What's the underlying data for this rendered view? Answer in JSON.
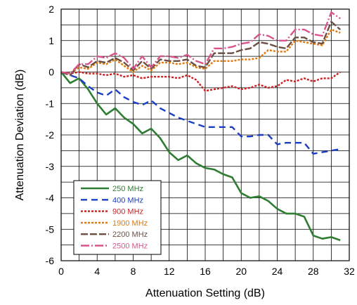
{
  "chart_data": {
    "type": "line",
    "title": "",
    "xlabel": "Attenuation Setting (dB)",
    "ylabel": "Attenuation Deviation (dB)",
    "xlim": [
      0,
      32
    ],
    "ylim": [
      -6,
      2
    ],
    "xticks": [
      0,
      4,
      8,
      12,
      16,
      20,
      24,
      28,
      32
    ],
    "yticks": [
      2,
      1,
      0,
      -1,
      -2,
      -3,
      -4,
      -5,
      -6
    ],
    "grid": true,
    "legend_position": "bottom-left",
    "x": [
      0,
      1,
      2,
      3,
      4,
      5,
      6,
      7,
      8,
      9,
      10,
      11,
      12,
      13,
      14,
      15,
      16,
      17,
      18,
      19,
      20,
      21,
      22,
      23,
      24,
      25,
      26,
      27,
      28,
      29,
      30,
      31
    ],
    "series": [
      {
        "name": "250 MHz",
        "color": "#2e7d32",
        "style": "solid",
        "values": [
          0,
          -0.35,
          -0.2,
          -0.55,
          -1.0,
          -1.35,
          -1.15,
          -1.45,
          -1.65,
          -1.95,
          -1.8,
          -2.1,
          -2.55,
          -2.8,
          -2.65,
          -2.9,
          -3.05,
          -3.1,
          -3.25,
          -3.35,
          -3.85,
          -4.0,
          -3.95,
          -4.1,
          -4.35,
          -4.5,
          -4.5,
          -4.6,
          -5.2,
          -5.3,
          -5.25,
          -5.35
        ]
      },
      {
        "name": "400 MHz",
        "color": "#1a3fc4",
        "style": "dash",
        "values": [
          0,
          -0.1,
          -0.2,
          -0.45,
          -0.65,
          -0.75,
          -0.55,
          -0.8,
          -0.95,
          -1.05,
          -0.9,
          -1.15,
          -1.3,
          -1.45,
          -1.55,
          -1.65,
          -1.75,
          -1.75,
          -1.75,
          -1.75,
          -2.05,
          -2.05,
          -2.0,
          -2.0,
          -2.3,
          -2.25,
          -2.25,
          -2.25,
          -2.6,
          -2.55,
          -2.5,
          -2.45
        ]
      },
      {
        "name": "900 MHz",
        "color": "#cc1f1f",
        "style": "dot",
        "values": [
          0,
          -0.05,
          0.0,
          -0.05,
          -0.05,
          -0.1,
          -0.05,
          -0.15,
          -0.1,
          -0.2,
          -0.15,
          -0.15,
          -0.15,
          -0.2,
          -0.1,
          -0.25,
          -0.6,
          -0.55,
          -0.5,
          -0.45,
          -0.55,
          -0.5,
          -0.4,
          -0.5,
          -0.45,
          -0.25,
          -0.3,
          -0.2,
          -0.3,
          -0.2,
          -0.2,
          0.0
        ]
      },
      {
        "name": "1900 MHz",
        "color": "#e07a10",
        "style": "dot",
        "values": [
          0,
          -0.05,
          0.15,
          0.1,
          0.3,
          0.25,
          0.4,
          0.2,
          0.0,
          0.2,
          0.05,
          0.3,
          0.3,
          0.25,
          0.3,
          0.15,
          0.1,
          0.35,
          0.35,
          0.35,
          0.4,
          0.4,
          0.45,
          0.7,
          0.65,
          0.65,
          1.0,
          0.95,
          0.9,
          0.85,
          1.35,
          1.25
        ]
      },
      {
        "name": "2200 MHz",
        "color": "#6b4f43",
        "style": "longdash",
        "values": [
          0,
          -0.1,
          0.25,
          0.15,
          0.35,
          0.3,
          0.45,
          0.3,
          0.05,
          0.35,
          0.1,
          0.4,
          0.35,
          0.35,
          0.4,
          0.2,
          0.15,
          0.6,
          0.6,
          0.6,
          0.7,
          0.75,
          0.95,
          0.9,
          0.8,
          0.75,
          1.1,
          1.1,
          0.95,
          0.9,
          1.6,
          1.35
        ]
      },
      {
        "name": "2500 MHz",
        "color": "#d9548a",
        "style": "dashdot",
        "values": [
          0,
          -0.05,
          0.25,
          0.25,
          0.5,
          0.45,
          0.6,
          0.45,
          0.1,
          0.5,
          0.15,
          0.5,
          0.5,
          0.45,
          0.55,
          0.35,
          0.25,
          0.75,
          0.75,
          0.8,
          0.9,
          0.95,
          1.2,
          1.15,
          1.0,
          1.0,
          1.35,
          1.35,
          1.2,
          1.15,
          1.9,
          1.7
        ]
      }
    ]
  }
}
